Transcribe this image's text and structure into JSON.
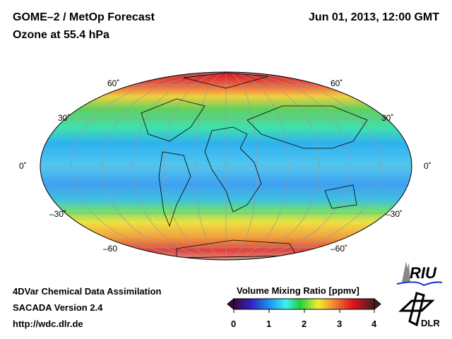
{
  "header": {
    "title_line1": "GOME–2 / MetOp Forecast",
    "title_line2": "Ozone at 55.4 hPa",
    "datetime": "Jun 01, 2013, 12:00 GMT"
  },
  "map": {
    "lat_labels_left": [
      "60˚",
      "30˚",
      "0˚",
      "–30˚",
      "–60"
    ],
    "lat_labels_right": [
      "60˚",
      "30˚",
      "0˚",
      "–30˚",
      "–60˚"
    ]
  },
  "footer": {
    "line1": "4DVar Chemical Data Assimilation",
    "line2": "SACADA Version 2.4",
    "line3": "http://wdc.dlr.de"
  },
  "colorbar": {
    "title": "Volume Mixing Ratio [ppmv]",
    "ticks": [
      "0",
      "1",
      "2",
      "3",
      "4"
    ],
    "range": [
      0,
      4
    ],
    "colors": [
      "#3a0a3a",
      "#3020c0",
      "#1a90f0",
      "#40f0f0",
      "#20d040",
      "#f0f030",
      "#f08030",
      "#e01020",
      "#402020"
    ]
  },
  "logos": {
    "riu": "RIU",
    "dlr": "DLR"
  }
}
